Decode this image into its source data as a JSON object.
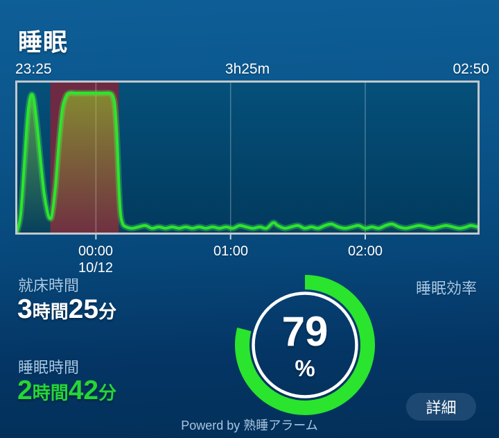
{
  "header": {
    "title": "睡眠"
  },
  "time_axis": {
    "start": "23:25",
    "duration": "3h25m",
    "end": "02:50"
  },
  "chart_data": {
    "type": "area",
    "x_axis": {
      "start_label": "23:25",
      "end_label": "02:50",
      "duration_label": "3h25m",
      "total_minutes": 205,
      "ticks": [
        {
          "minutes": 35,
          "label": "00:00",
          "date_label": "10/12"
        },
        {
          "minutes": 95,
          "label": "01:00",
          "date_label": ""
        },
        {
          "minutes": 155,
          "label": "02:00",
          "date_label": ""
        }
      ]
    },
    "y_axis": {
      "min": 0,
      "max": 100,
      "labels_visible": false
    },
    "grid": "vertical-only",
    "highlight_band": {
      "start_minutes": 14.7,
      "end_minutes": 45.2,
      "color": "#6e2a43"
    },
    "line_color": "#2be62b",
    "line_glow_color": "rgba(80,255,80,0.30)",
    "area_fill_top": "rgba(150,215,35,0.55)",
    "area_fill_bottom": "rgba(150,215,35,0.04)",
    "series": [
      {
        "name": "sleep-depth",
        "points": [
          [
            0,
            0
          ],
          [
            1.5,
            12
          ],
          [
            3,
            45
          ],
          [
            4.5,
            80
          ],
          [
            5.5,
            93
          ],
          [
            6.5,
            97
          ],
          [
            7.5,
            92
          ],
          [
            9,
            72
          ],
          [
            10.5,
            48
          ],
          [
            12,
            26
          ],
          [
            13.5,
            13
          ],
          [
            14.5,
            9
          ],
          [
            15.5,
            12
          ],
          [
            17,
            32
          ],
          [
            18.5,
            62
          ],
          [
            20,
            86
          ],
          [
            21.5,
            95
          ],
          [
            23,
            98
          ],
          [
            26,
            98
          ],
          [
            29,
            98
          ],
          [
            32,
            98
          ],
          [
            35,
            98
          ],
          [
            38,
            98
          ],
          [
            41,
            98
          ],
          [
            42.5,
            96
          ],
          [
            43.5,
            88
          ],
          [
            44.5,
            62
          ],
          [
            45.3,
            30
          ],
          [
            46,
            12
          ],
          [
            47,
            5
          ],
          [
            48.5,
            3
          ],
          [
            51,
            2
          ],
          [
            54,
            3
          ],
          [
            57,
            4
          ],
          [
            60,
            2
          ],
          [
            63,
            3
          ],
          [
            66,
            2
          ],
          [
            69,
            3
          ],
          [
            72,
            2
          ],
          [
            75,
            3
          ],
          [
            78,
            2
          ],
          [
            81,
            3
          ],
          [
            84,
            2
          ],
          [
            87,
            3
          ],
          [
            90,
            2
          ],
          [
            93,
            3
          ],
          [
            96,
            2
          ],
          [
            99,
            4
          ],
          [
            102,
            3
          ],
          [
            105,
            2
          ],
          [
            108,
            3
          ],
          [
            111,
            2
          ],
          [
            114,
            6
          ],
          [
            116,
            4
          ],
          [
            119,
            2
          ],
          [
            122,
            3
          ],
          [
            125,
            4
          ],
          [
            128,
            2
          ],
          [
            131,
            3
          ],
          [
            134,
            2
          ],
          [
            137,
            4
          ],
          [
            140,
            5
          ],
          [
            143,
            3
          ],
          [
            146,
            2
          ],
          [
            149,
            3
          ],
          [
            152,
            4
          ],
          [
            155,
            2
          ],
          [
            158,
            3
          ],
          [
            161,
            2
          ],
          [
            164,
            4
          ],
          [
            167,
            5
          ],
          [
            170,
            3
          ],
          [
            173,
            2
          ],
          [
            176,
            3
          ],
          [
            179,
            4
          ],
          [
            182,
            3
          ],
          [
            185,
            2
          ],
          [
            188,
            3
          ],
          [
            191,
            4
          ],
          [
            194,
            3
          ],
          [
            197,
            2
          ],
          [
            200,
            3
          ],
          [
            202,
            4
          ],
          [
            205,
            3
          ]
        ]
      }
    ]
  },
  "stats": {
    "in_bed": {
      "label": "就床時間",
      "hours": "3",
      "hours_unit": "時間",
      "minutes": "25",
      "minutes_unit": "分"
    },
    "sleep": {
      "label": "睡眠時間",
      "hours": "2",
      "hours_unit": "時間",
      "minutes": "42",
      "minutes_unit": "分",
      "value_color": "#25d636"
    },
    "efficiency": {
      "label": "睡眠効率",
      "percent": 79,
      "unit": "%"
    }
  },
  "actions": {
    "detail_button": "詳細"
  },
  "footer": {
    "powered_by": "Powerd by 熟睡アラーム"
  },
  "colors": {
    "background_top": "#0e5e97",
    "background_bottom": "#03305a",
    "chart_bg_top": "#05507a",
    "chart_bg_bottom": "#023a5e",
    "chart_border": "#c2c8cc",
    "gridline": "rgba(255,255,255,0.28)",
    "label_blue": "#a6cbea",
    "accent_green": "#2ae42e",
    "text_white": "#ffffff"
  }
}
